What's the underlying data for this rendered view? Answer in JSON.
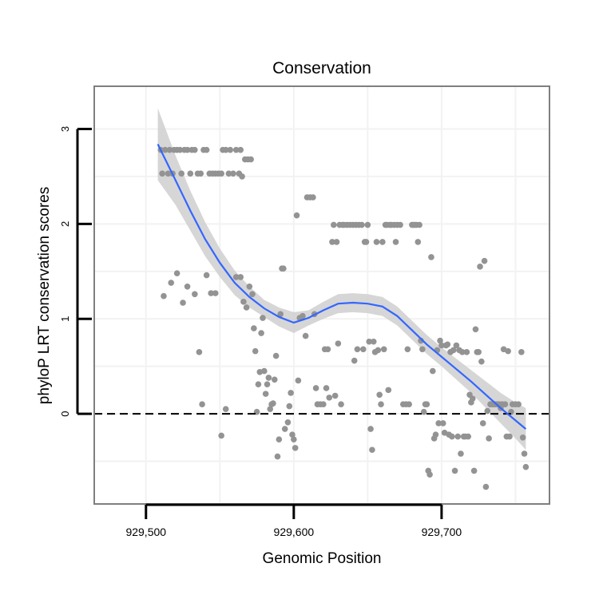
{
  "chart_data": {
    "type": "scatter",
    "title": "Conservation",
    "xlabel": "Genomic Position",
    "ylabel": "phyloP LRT conservation scores",
    "xlim": [
      929465,
      929773
    ],
    "ylim": [
      -0.95,
      3.45
    ],
    "x_ticks": [
      929500,
      929600,
      929700
    ],
    "x_tick_labels": [
      "929,500",
      "929,600",
      "929,700"
    ],
    "y_ticks": [
      0,
      1,
      2,
      3
    ],
    "y_tick_labels": [
      "0",
      "1",
      "2",
      "3"
    ],
    "grid": true,
    "reference_line": {
      "y": 0,
      "style": "dashed"
    },
    "points": [
      [
        929510,
        2.78
      ],
      [
        929511,
        2.53
      ],
      [
        929513,
        2.78
      ],
      [
        929515,
        2.53
      ],
      [
        929516,
        2.78
      ],
      [
        929518,
        2.53
      ],
      [
        929519,
        2.78
      ],
      [
        929521,
        2.78
      ],
      [
        929523,
        2.78
      ],
      [
        929524,
        2.53
      ],
      [
        929526,
        2.78
      ],
      [
        929528,
        2.78
      ],
      [
        929530,
        2.53
      ],
      [
        929531,
        2.78
      ],
      [
        929533,
        2.78
      ],
      [
        929535,
        2.53
      ],
      [
        929537,
        2.53
      ],
      [
        929539,
        2.78
      ],
      [
        929541,
        2.78
      ],
      [
        929543,
        2.53
      ],
      [
        929545,
        2.53
      ],
      [
        929547,
        2.53
      ],
      [
        929549,
        2.53
      ],
      [
        929551,
        2.53
      ],
      [
        929552,
        2.78
      ],
      [
        929554,
        2.78
      ],
      [
        929556,
        2.53
      ],
      [
        929557,
        2.78
      ],
      [
        929559,
        2.53
      ],
      [
        929561,
        2.78
      ],
      [
        929563,
        2.53
      ],
      [
        929564,
        2.78
      ],
      [
        929565,
        2.5
      ],
      [
        929567,
        2.68
      ],
      [
        929569,
        2.68
      ],
      [
        929571,
        2.68
      ],
      [
        929512,
        1.24
      ],
      [
        929517,
        1.38
      ],
      [
        929521,
        1.48
      ],
      [
        929525,
        1.17
      ],
      [
        929528,
        1.34
      ],
      [
        929533,
        1.26
      ],
      [
        929536,
        0.65
      ],
      [
        929538,
        0.1
      ],
      [
        929541,
        1.46
      ],
      [
        929544,
        1.27
      ],
      [
        929547,
        1.27
      ],
      [
        929551,
        -0.23
      ],
      [
        929554,
        0.05
      ],
      [
        929561,
        1.44
      ],
      [
        929564,
        1.44
      ],
      [
        929566,
        1.18
      ],
      [
        929568,
        1.12
      ],
      [
        929570,
        1.34
      ],
      [
        929572,
        1.26
      ],
      [
        929573,
        0.9
      ],
      [
        929574,
        0.66
      ],
      [
        929575,
        0.02
      ],
      [
        929576,
        0.31
      ],
      [
        929577,
        0.44
      ],
      [
        929578,
        0.85
      ],
      [
        929579,
        1.01
      ],
      [
        929580,
        0.45
      ],
      [
        929581,
        0.21
      ],
      [
        929582,
        0.31
      ],
      [
        929583,
        0.38
      ],
      [
        929584,
        0.05
      ],
      [
        929585,
        0.1
      ],
      [
        929586,
        0.11
      ],
      [
        929587,
        0.36
      ],
      [
        929588,
        0.61
      ],
      [
        929589,
        -0.45
      ],
      [
        929590,
        -0.27
      ],
      [
        929591,
        1.05
      ],
      [
        929592,
        1.53
      ],
      [
        929593,
        1.53
      ],
      [
        929594,
        -0.16
      ],
      [
        929596,
        -0.09
      ],
      [
        929597,
        0.08
      ],
      [
        929598,
        0.22
      ],
      [
        929599,
        -0.22
      ],
      [
        929600,
        -0.27
      ],
      [
        929601,
        -0.36
      ],
      [
        929602,
        2.09
      ],
      [
        929603,
        0.35
      ],
      [
        929604,
        1.01
      ],
      [
        929606,
        1.03
      ],
      [
        929608,
        0.82
      ],
      [
        929609,
        2.28
      ],
      [
        929611,
        2.28
      ],
      [
        929613,
        2.28
      ],
      [
        929614,
        1.05
      ],
      [
        929615,
        0.27
      ],
      [
        929616,
        0.1
      ],
      [
        929618,
        0.1
      ],
      [
        929620,
        0.1
      ],
      [
        929621,
        0.68
      ],
      [
        929622,
        0.27
      ],
      [
        929623,
        0.68
      ],
      [
        929624,
        0.17
      ],
      [
        929626,
        1.81
      ],
      [
        929627,
        1.99
      ],
      [
        929628,
        0.19
      ],
      [
        929629,
        1.81
      ],
      [
        929630,
        0.74
      ],
      [
        929631,
        1.99
      ],
      [
        929632,
        0.1
      ],
      [
        929633,
        1.99
      ],
      [
        929634,
        1.99
      ],
      [
        929636,
        1.99
      ],
      [
        929638,
        1.99
      ],
      [
        929640,
        1.99
      ],
      [
        929641,
        0.56
      ],
      [
        929642,
        1.99
      ],
      [
        929643,
        0.68
      ],
      [
        929644,
        1.99
      ],
      [
        929646,
        1.99
      ],
      [
        929647,
        0.68
      ],
      [
        929648,
        1.81
      ],
      [
        929649,
        1.81
      ],
      [
        929650,
        1.99
      ],
      [
        929651,
        0.76
      ],
      [
        929652,
        -0.16
      ],
      [
        929653,
        -0.38
      ],
      [
        929654,
        0.76
      ],
      [
        929655,
        0.65
      ],
      [
        929656,
        1.81
      ],
      [
        929657,
        0.67
      ],
      [
        929658,
        0.2
      ],
      [
        929659,
        0.1
      ],
      [
        929660,
        1.81
      ],
      [
        929661,
        0.68
      ],
      [
        929662,
        1.99
      ],
      [
        929663,
        1.99
      ],
      [
        929664,
        0.25
      ],
      [
        929665,
        1.99
      ],
      [
        929666,
        1.99
      ],
      [
        929668,
        1.99
      ],
      [
        929669,
        1.81
      ],
      [
        929670,
        1.99
      ],
      [
        929672,
        1.99
      ],
      [
        929674,
        0.1
      ],
      [
        929676,
        0.1
      ],
      [
        929677,
        0.68
      ],
      [
        929678,
        0.1
      ],
      [
        929680,
        1.99
      ],
      [
        929681,
        1.99
      ],
      [
        929682,
        1.99
      ],
      [
        929683,
        1.99
      ],
      [
        929684,
        1.81
      ],
      [
        929685,
        1.99
      ],
      [
        929686,
        0.77
      ],
      [
        929687,
        0.68
      ],
      [
        929688,
        0.02
      ],
      [
        929689,
        0.1
      ],
      [
        929690,
        0.1
      ],
      [
        929691,
        -0.6
      ],
      [
        929692,
        -0.64
      ],
      [
        929693,
        1.65
      ],
      [
        929694,
        0.45
      ],
      [
        929695,
        -0.26
      ],
      [
        929696,
        -0.22
      ],
      [
        929697,
        0.67
      ],
      [
        929698,
        -0.1
      ],
      [
        929699,
        0.77
      ],
      [
        929700,
        0.72
      ],
      [
        929701,
        -0.1
      ],
      [
        929702,
        -0.2
      ],
      [
        929703,
        0.72
      ],
      [
        929704,
        0.73
      ],
      [
        929705,
        -0.22
      ],
      [
        929706,
        0.65
      ],
      [
        929707,
        -0.24
      ],
      [
        929708,
        0.67
      ],
      [
        929709,
        -0.6
      ],
      [
        929710,
        0.72
      ],
      [
        929711,
        -0.24
      ],
      [
        929712,
        0.67
      ],
      [
        929713,
        -0.42
      ],
      [
        929714,
        0.65
      ],
      [
        929715,
        -0.24
      ],
      [
        929716,
        -0.24
      ],
      [
        929717,
        0.65
      ],
      [
        929718,
        -0.24
      ],
      [
        929719,
        0.2
      ],
      [
        929720,
        0.12
      ],
      [
        929721,
        0.16
      ],
      [
        929722,
        -0.6
      ],
      [
        929723,
        0.89
      ],
      [
        929724,
        0.65
      ],
      [
        929725,
        0.65
      ],
      [
        929726,
        1.55
      ],
      [
        929727,
        0.55
      ],
      [
        929728,
        -0.1
      ],
      [
        929729,
        1.61
      ],
      [
        929730,
        -0.77
      ],
      [
        929731,
        0.03
      ],
      [
        929732,
        -0.26
      ],
      [
        929733,
        0.1
      ],
      [
        929734,
        0.1
      ],
      [
        929735,
        0.1
      ],
      [
        929736,
        0.1
      ],
      [
        929737,
        0.1
      ],
      [
        929738,
        0.1
      ],
      [
        929739,
        0.1
      ],
      [
        929740,
        0.06
      ],
      [
        929741,
        0.1
      ],
      [
        929742,
        0.68
      ],
      [
        929743,
        0.1
      ],
      [
        929744,
        -0.24
      ],
      [
        929745,
        0.66
      ],
      [
        929746,
        -0.24
      ],
      [
        929747,
        0.02
      ],
      [
        929748,
        0.1
      ],
      [
        929750,
        0.1
      ],
      [
        929752,
        0.1
      ],
      [
        929754,
        0.65
      ],
      [
        929755,
        -0.25
      ],
      [
        929756,
        -0.42
      ],
      [
        929757,
        -0.56
      ]
    ],
    "smooth": [
      [
        929508,
        2.84
      ],
      [
        929520,
        2.46
      ],
      [
        929530,
        2.14
      ],
      [
        929540,
        1.84
      ],
      [
        929550,
        1.59
      ],
      [
        929560,
        1.38
      ],
      [
        929570,
        1.23
      ],
      [
        929580,
        1.11
      ],
      [
        929590,
        1.02
      ],
      [
        929600,
        0.96
      ],
      [
        929610,
        1.01
      ],
      [
        929620,
        1.09
      ],
      [
        929630,
        1.16
      ],
      [
        929640,
        1.17
      ],
      [
        929650,
        1.16
      ],
      [
        929660,
        1.13
      ],
      [
        929670,
        1.03
      ],
      [
        929680,
        0.88
      ],
      [
        929690,
        0.73
      ],
      [
        929700,
        0.6
      ],
      [
        929710,
        0.47
      ],
      [
        929720,
        0.34
      ],
      [
        929730,
        0.2
      ],
      [
        929740,
        0.06
      ],
      [
        929750,
        -0.07
      ],
      [
        929757,
        -0.16
      ]
    ],
    "ci_upper": [
      [
        929508,
        3.22
      ],
      [
        929520,
        2.72
      ],
      [
        929530,
        2.35
      ],
      [
        929540,
        2.02
      ],
      [
        929550,
        1.74
      ],
      [
        929560,
        1.51
      ],
      [
        929570,
        1.34
      ],
      [
        929580,
        1.2
      ],
      [
        929590,
        1.12
      ],
      [
        929600,
        1.07
      ],
      [
        929610,
        1.09
      ],
      [
        929620,
        1.18
      ],
      [
        929630,
        1.26
      ],
      [
        929640,
        1.27
      ],
      [
        929650,
        1.26
      ],
      [
        929660,
        1.23
      ],
      [
        929670,
        1.13
      ],
      [
        929680,
        0.98
      ],
      [
        929690,
        0.83
      ],
      [
        929700,
        0.7
      ],
      [
        929710,
        0.58
      ],
      [
        929720,
        0.46
      ],
      [
        929730,
        0.34
      ],
      [
        929740,
        0.22
      ],
      [
        929750,
        0.12
      ],
      [
        929757,
        0.06
      ]
    ],
    "ci_lower": [
      [
        929508,
        2.46
      ],
      [
        929520,
        2.2
      ],
      [
        929530,
        1.93
      ],
      [
        929540,
        1.66
      ],
      [
        929550,
        1.44
      ],
      [
        929560,
        1.25
      ],
      [
        929570,
        1.12
      ],
      [
        929580,
        1.02
      ],
      [
        929590,
        0.92
      ],
      [
        929600,
        0.85
      ],
      [
        929610,
        0.93
      ],
      [
        929620,
        1.0
      ],
      [
        929630,
        1.06
      ],
      [
        929640,
        1.07
      ],
      [
        929650,
        1.06
      ],
      [
        929660,
        1.03
      ],
      [
        929670,
        0.93
      ],
      [
        929680,
        0.78
      ],
      [
        929690,
        0.63
      ],
      [
        929700,
        0.5
      ],
      [
        929710,
        0.36
      ],
      [
        929720,
        0.22
      ],
      [
        929730,
        0.06
      ],
      [
        929740,
        -0.1
      ],
      [
        929750,
        -0.26
      ],
      [
        929757,
        -0.38
      ]
    ],
    "colors": {
      "points": "#939393",
      "smooth": "#3366ff",
      "ribbon": "#cccccc",
      "frame": "#7f7f7f",
      "grid": "#f2f2f2"
    }
  }
}
